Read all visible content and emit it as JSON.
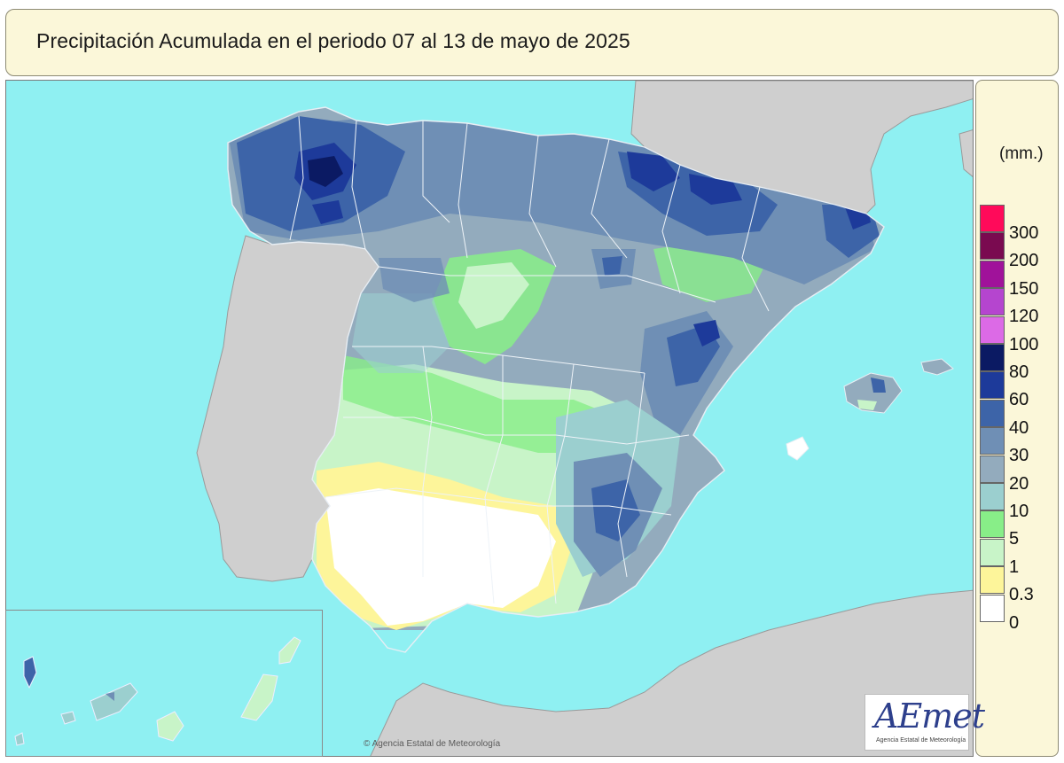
{
  "title": "Precipitación Acumulada en el periodo 07 al 13 de mayo de 2025",
  "legend": {
    "unit": "(mm.)",
    "classes": [
      {
        "label": "300",
        "color": "#ff0a5a"
      },
      {
        "label": "200",
        "color": "#7a0a50"
      },
      {
        "label": "150",
        "color": "#a0129a"
      },
      {
        "label": "120",
        "color": "#b545cf"
      },
      {
        "label": "100",
        "color": "#dc6ae6"
      },
      {
        "label": "80",
        "color": "#0b1a63"
      },
      {
        "label": "60",
        "color": "#1d3a9a"
      },
      {
        "label": "40",
        "color": "#3d64a8"
      },
      {
        "label": "30",
        "color": "#6f8fb5"
      },
      {
        "label": "20",
        "color": "#93abbd"
      },
      {
        "label": "10",
        "color": "#9bcfcf"
      },
      {
        "label": "5",
        "color": "#88ee88"
      },
      {
        "label": "1",
        "color": "#c8f4c8"
      },
      {
        "label": "0.3",
        "color": "#fdf59a"
      },
      {
        "label": "0",
        "color": "#ffffff"
      }
    ]
  },
  "logo": {
    "text": "AEmet",
    "subtitle": "Agencia Estatal de Meteorología"
  },
  "copyright": "© Agencia Estatal de Meteorología",
  "colors": {
    "sea": "#8ff0f2",
    "land_outside": "#cfcfcf",
    "panel": "#fbf7d9"
  }
}
